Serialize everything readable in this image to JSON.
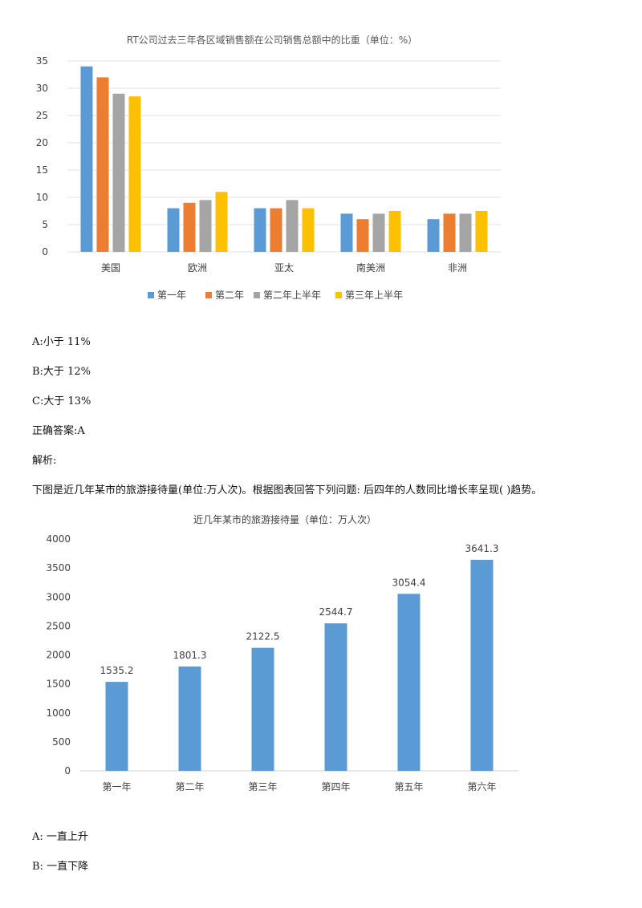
{
  "chart_data": [
    {
      "type": "bar",
      "title": "RT公司过去三年各区域销售额在公司销售总额中的比重（单位：%）",
      "categories": [
        "美国",
        "欧洲",
        "亚太",
        "南美洲",
        "非洲"
      ],
      "series": [
        {
          "name": "第一年",
          "color": "#5b9bd5",
          "values": [
            34,
            8,
            8,
            7,
            6
          ]
        },
        {
          "name": "第二年",
          "color": "#ed7d31",
          "values": [
            32,
            9,
            8,
            6,
            7
          ]
        },
        {
          "name": "第二年上半年",
          "color": "#a5a5a5",
          "values": [
            29,
            9.5,
            9.5,
            7,
            7
          ]
        },
        {
          "name": "第三年上半年",
          "color": "#ffc000",
          "values": [
            28.5,
            11,
            8,
            7.5,
            7.5
          ]
        }
      ],
      "ylim": [
        0,
        35
      ],
      "yticks": [
        0,
        5,
        10,
        15,
        20,
        25,
        30,
        35
      ],
      "grid": true,
      "legend": "bottom"
    },
    {
      "type": "bar",
      "title": "近几年某市的旅游接待量（单位：万人次）",
      "categories": [
        "第一年",
        "第二年",
        "第三年",
        "第四年",
        "第五年",
        "第六年"
      ],
      "series": [
        {
          "color": "#5b9bd5",
          "values": [
            1535.2,
            1801.3,
            2122.5,
            2544.7,
            3054.4,
            3641.3
          ]
        }
      ],
      "data_labels": [
        "1535.2",
        "1801.3",
        "2122.5",
        "2544.7",
        "3054.4",
        "3641.3"
      ],
      "ylim": [
        0,
        4000
      ],
      "yticks": [
        0,
        500,
        1000,
        1500,
        2000,
        2500,
        3000,
        3500,
        4000
      ],
      "grid": false,
      "legend": "none"
    }
  ],
  "question1": {
    "options": [
      "A:小于 11%",
      "B:大于 12%",
      "C:大于 13%"
    ],
    "answer": "正确答案:A",
    "analysis_label": "解析:"
  },
  "question2": {
    "text": "下图是近几年某市的旅游接待量(单位:万人次)。根据图表回答下列问题: 后四年的人数同比增长率呈现( )趋势。",
    "options": [
      "A:  一直上升",
      "B:  一直下降"
    ]
  }
}
